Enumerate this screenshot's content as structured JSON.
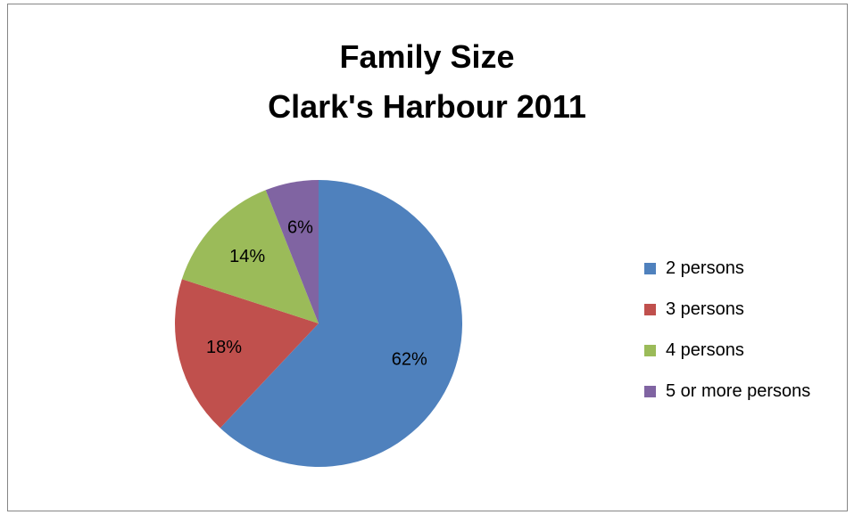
{
  "chart_data": {
    "type": "pie",
    "title": [
      "Family Size",
      "Clark's Harbour 2011"
    ],
    "categories": [
      "2 persons",
      "3 persons",
      "4 persons",
      "5 or more persons"
    ],
    "values": [
      62,
      18,
      14,
      6
    ],
    "data_labels": [
      "62%",
      "18%",
      "14%",
      "6%"
    ],
    "colors": [
      "#4f81bd",
      "#c0504d",
      "#9bbb59",
      "#8064a2"
    ],
    "legend_position": "right"
  }
}
